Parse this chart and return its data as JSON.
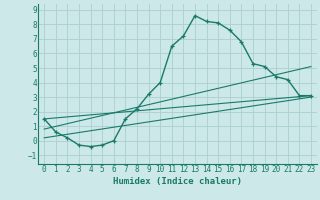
{
  "xlabel": "Humidex (Indice chaleur)",
  "bg_color": "#cce8e8",
  "grid_color": "#aad0d0",
  "line_color": "#1a7a6a",
  "xlim": [
    -0.5,
    23.5
  ],
  "ylim": [
    -1.6,
    9.4
  ],
  "xticks": [
    0,
    1,
    2,
    3,
    4,
    5,
    6,
    7,
    8,
    9,
    10,
    11,
    12,
    13,
    14,
    15,
    16,
    17,
    18,
    19,
    20,
    21,
    22,
    23
  ],
  "yticks": [
    -1,
    0,
    1,
    2,
    3,
    4,
    5,
    6,
    7,
    8,
    9
  ],
  "curve1_x": [
    0,
    1,
    2,
    3,
    4,
    5,
    6,
    7,
    8,
    9,
    10,
    11,
    12,
    13,
    14,
    15,
    16,
    17,
    18,
    19,
    20,
    21,
    22,
    23
  ],
  "curve1_y": [
    1.5,
    0.6,
    0.2,
    -0.3,
    -0.4,
    -0.3,
    0.0,
    1.5,
    2.2,
    3.2,
    4.0,
    6.5,
    7.2,
    8.6,
    8.2,
    8.1,
    7.6,
    6.8,
    5.3,
    5.1,
    4.4,
    4.2,
    3.1,
    3.1
  ],
  "line1_x": [
    0,
    23
  ],
  "line1_y": [
    1.5,
    3.1
  ],
  "line2_x": [
    0,
    23
  ],
  "line2_y": [
    0.8,
    5.1
  ],
  "line3_x": [
    0,
    23
  ],
  "line3_y": [
    0.2,
    3.0
  ]
}
